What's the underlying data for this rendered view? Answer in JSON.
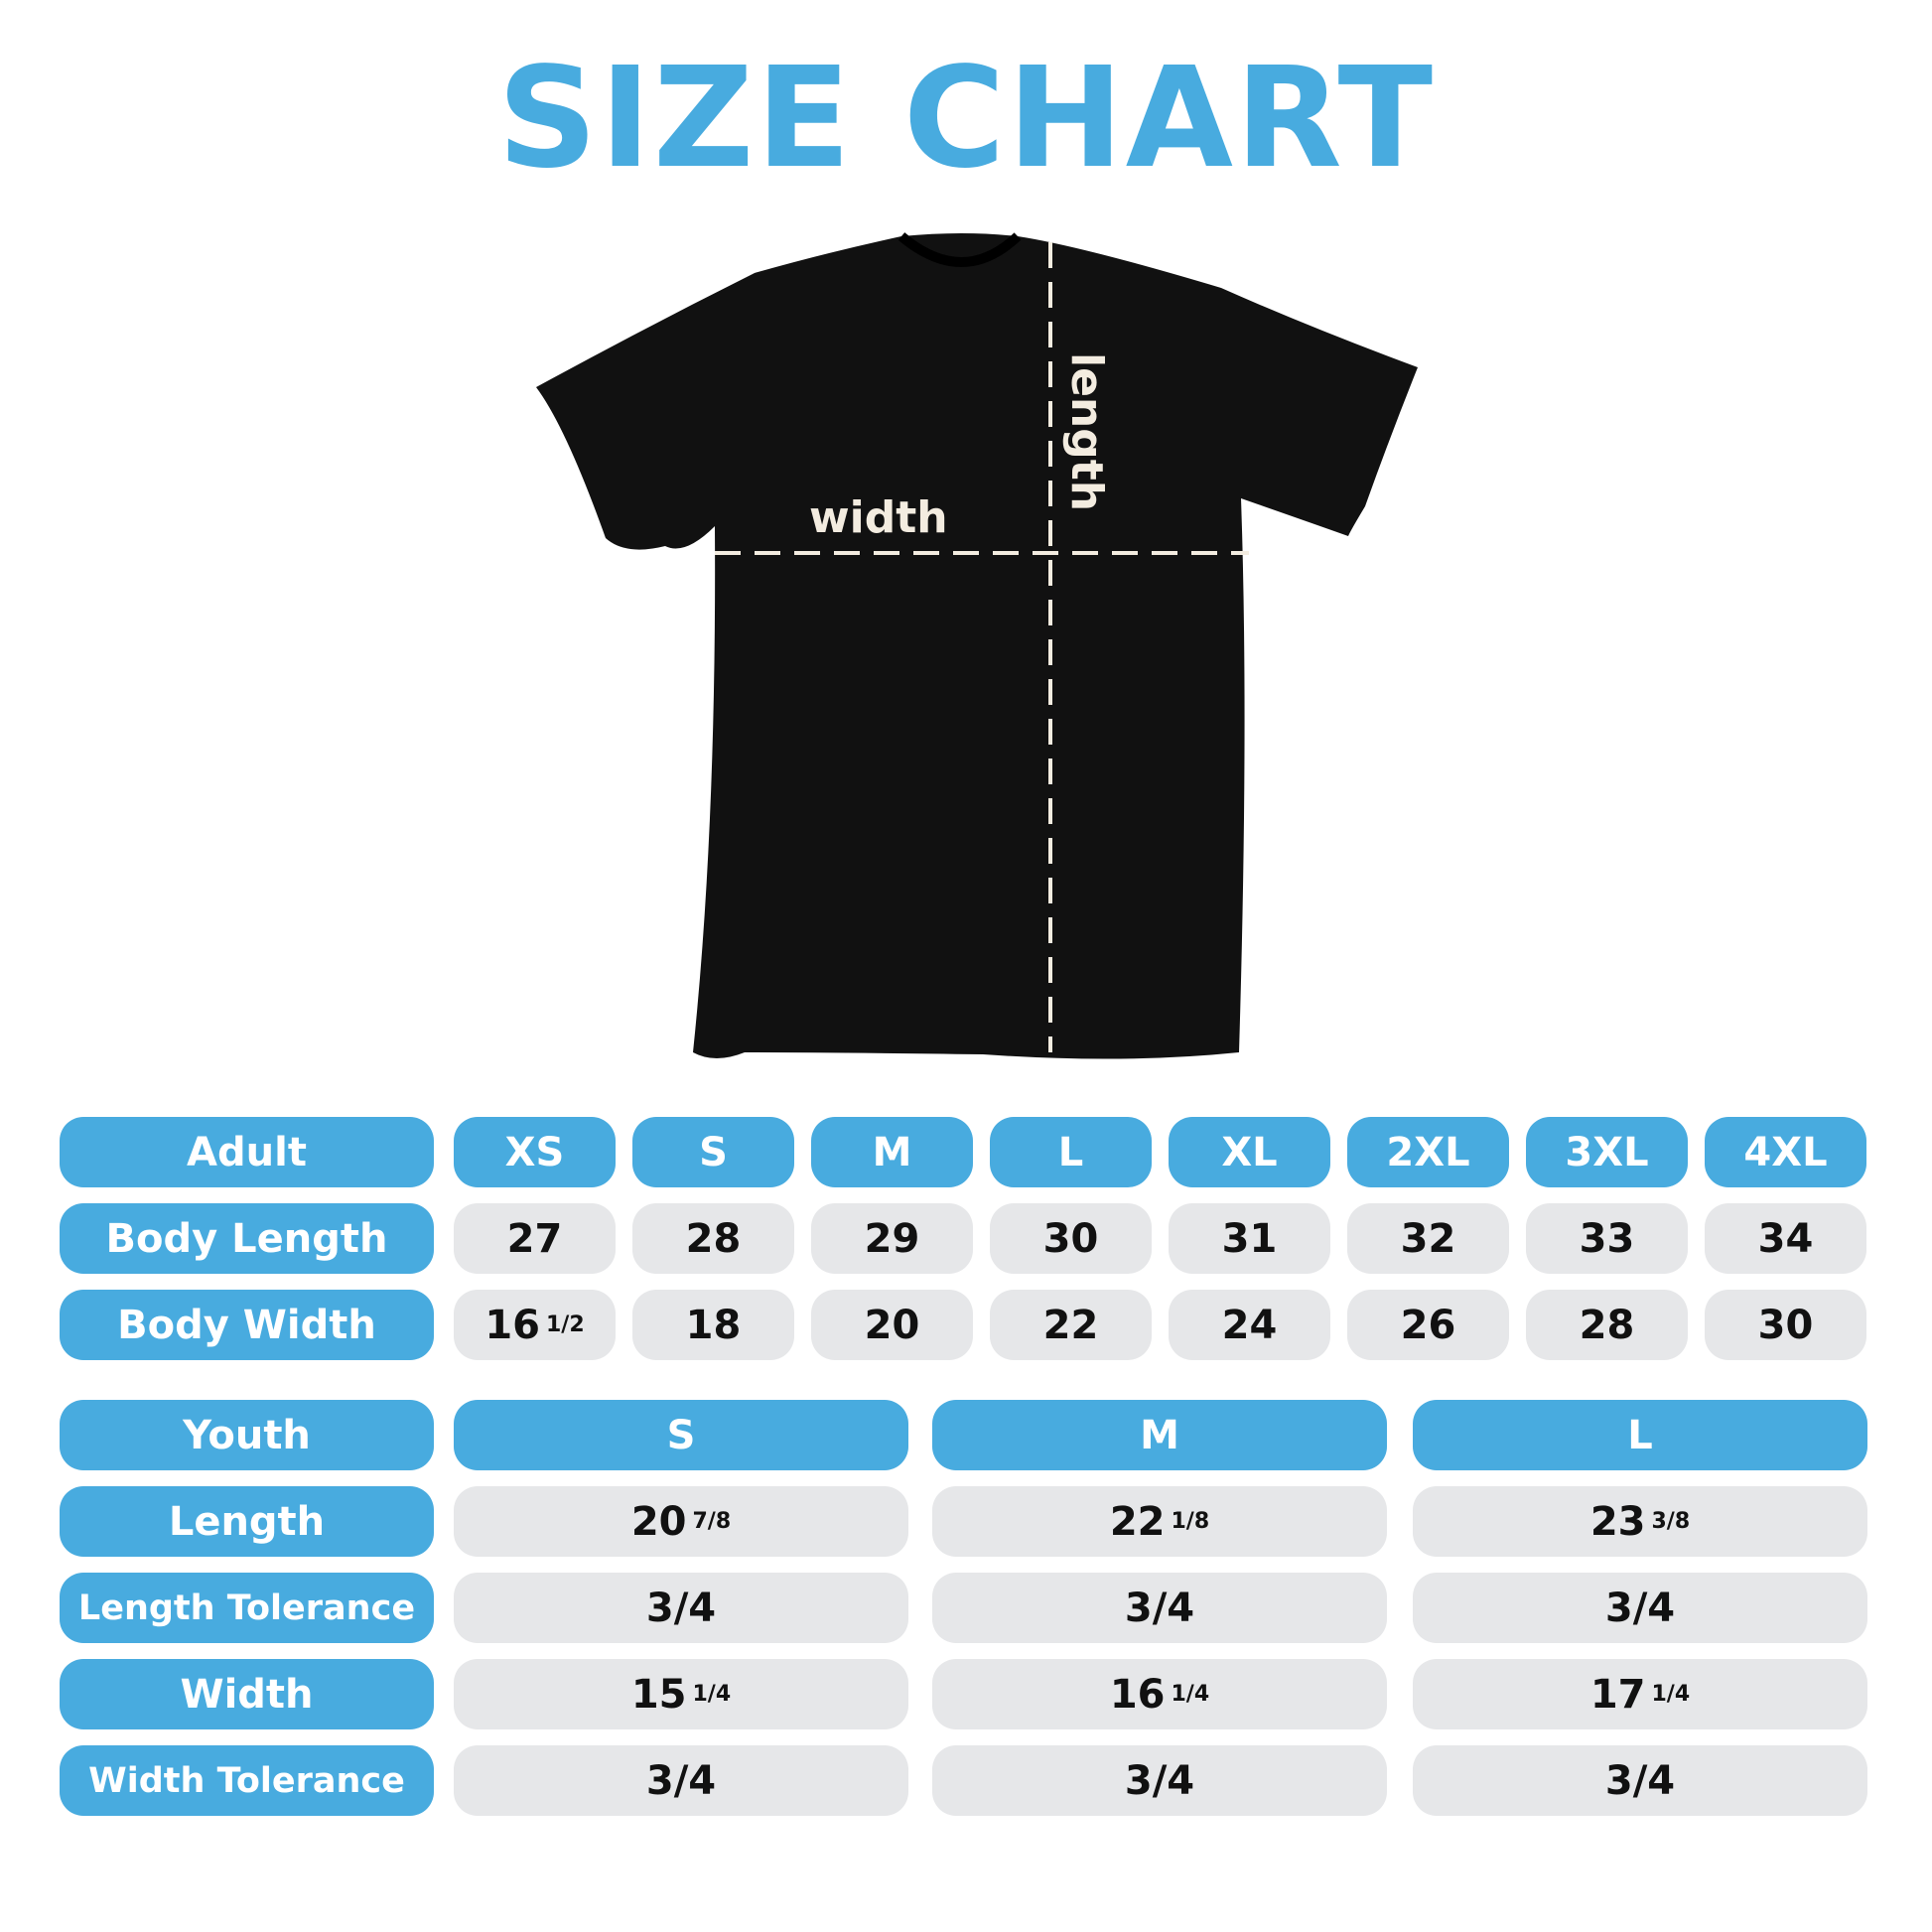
{
  "title": "SIZE CHART",
  "shirt": {
    "width_label": "width",
    "length_label": "length",
    "shirt_color": "#111111"
  },
  "colors": {
    "accent": "#48abdf",
    "cell": "#e6e7e9"
  },
  "adult": {
    "header": "Adult",
    "sizes": [
      "XS",
      "S",
      "M",
      "L",
      "XL",
      "2XL",
      "3XL",
      "4XL"
    ],
    "rows": [
      {
        "label": "Body Length",
        "values": [
          [
            "27",
            ""
          ],
          [
            "28",
            ""
          ],
          [
            "29",
            ""
          ],
          [
            "30",
            ""
          ],
          [
            "31",
            ""
          ],
          [
            "32",
            ""
          ],
          [
            "33",
            ""
          ],
          [
            "34",
            ""
          ]
        ]
      },
      {
        "label": "Body Width",
        "values": [
          [
            "16",
            "1/2"
          ],
          [
            "18",
            ""
          ],
          [
            "20",
            ""
          ],
          [
            "22",
            ""
          ],
          [
            "24",
            ""
          ],
          [
            "26",
            ""
          ],
          [
            "28",
            ""
          ],
          [
            "30",
            ""
          ]
        ]
      }
    ]
  },
  "youth": {
    "header": "Youth",
    "sizes": [
      "S",
      "M",
      "L"
    ],
    "rows": [
      {
        "label": "Length",
        "values": [
          [
            "20",
            "7/8"
          ],
          [
            "22",
            "1/8"
          ],
          [
            "23",
            "3/8"
          ]
        ]
      },
      {
        "label": "Length Tolerance",
        "values": [
          [
            "3/4",
            ""
          ],
          [
            "3/4",
            ""
          ],
          [
            "3/4",
            ""
          ]
        ]
      },
      {
        "label": "Width",
        "values": [
          [
            "15",
            "1/4"
          ],
          [
            "16",
            "1/4"
          ],
          [
            "17",
            "1/4"
          ]
        ]
      },
      {
        "label": "Width Tolerance",
        "values": [
          [
            "3/4",
            ""
          ],
          [
            "3/4",
            ""
          ],
          [
            "3/4",
            ""
          ]
        ]
      }
    ]
  }
}
